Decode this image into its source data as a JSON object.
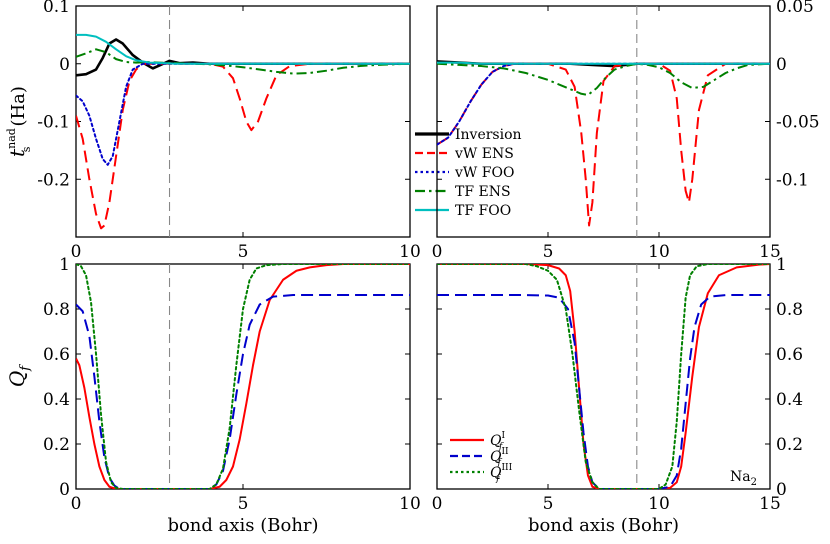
{
  "chart_data": [
    {
      "type": "line",
      "panel": "top-left",
      "xlim": [
        0,
        10
      ],
      "ylim": [
        -0.3,
        0.1
      ],
      "xticks": [
        "0",
        "5",
        "10"
      ],
      "yticks": [
        "0.1",
        "0",
        "-0.1",
        "-0.2"
      ],
      "yaxis_side": "left",
      "ylabel_main": "t",
      "ylabel_sup": "nad",
      "ylabel_sub": "s",
      "ylabel_unit": "(Ha)",
      "vline_x": 2.8,
      "legend": {
        "placement": "bottom-left",
        "entries": [
          {
            "label": "Inversion",
            "color": "#000000",
            "dash": "solid"
          },
          {
            "label": "vW ENS",
            "color": "#ff0000",
            "dash": "dashed"
          },
          {
            "label": "vW FOO",
            "color": "#0000cc",
            "dash": "dotted"
          },
          {
            "label": "TF ENS",
            "color": "#008000",
            "dash": "dashdot"
          },
          {
            "label": "TF FOO",
            "color": "#00bfbf",
            "dash": "solid"
          }
        ]
      },
      "series": [
        {
          "name": "Inversion",
          "color": "#000000",
          "dash": "solid",
          "x": [
            0,
            0.3,
            0.6,
            0.8,
            1.0,
            1.2,
            1.4,
            1.7,
            2.0,
            2.3,
            2.5,
            2.8,
            3.1,
            3.5,
            4,
            5,
            6,
            7,
            8,
            9,
            10
          ],
          "y": [
            -0.02,
            -0.018,
            -0.01,
            0.01,
            0.035,
            0.042,
            0.035,
            0.015,
            0.002,
            -0.008,
            -0.003,
            0.005,
            0.001,
            0.002,
            0,
            0,
            0,
            0,
            0,
            0,
            0
          ]
        },
        {
          "name": "vW ENS",
          "color": "#ff0000",
          "dash": "dashed",
          "x": [
            0,
            0.2,
            0.4,
            0.6,
            0.75,
            0.85,
            1.0,
            1.2,
            1.4,
            1.6,
            1.8,
            2.0,
            2.3,
            2.6,
            3.0,
            3.5,
            4.0,
            4.4,
            4.7,
            4.9,
            5.1,
            5.25,
            5.45,
            5.7,
            6.0,
            6.4,
            7,
            8,
            9,
            10
          ],
          "y": [
            -0.09,
            -0.13,
            -0.2,
            -0.26,
            -0.285,
            -0.28,
            -0.24,
            -0.16,
            -0.08,
            -0.03,
            -0.01,
            0,
            0,
            0,
            0,
            0,
            0,
            -0.005,
            -0.025,
            -0.06,
            -0.1,
            -0.115,
            -0.1,
            -0.06,
            -0.02,
            -0.004,
            0,
            0,
            0,
            0
          ]
        },
        {
          "name": "vW FOO",
          "color": "#0000cc",
          "dash": "dotted",
          "x": [
            0,
            0.2,
            0.4,
            0.6,
            0.8,
            0.95,
            1.1,
            1.3,
            1.5,
            1.7,
            2.0,
            2.5,
            3,
            4,
            5,
            6,
            7,
            8,
            9,
            10
          ],
          "y": [
            -0.055,
            -0.065,
            -0.09,
            -0.13,
            -0.165,
            -0.175,
            -0.16,
            -0.1,
            -0.04,
            -0.01,
            0,
            0,
            0,
            0,
            0,
            0,
            0,
            0,
            0,
            0
          ]
        },
        {
          "name": "TF ENS",
          "color": "#008000",
          "dash": "dashdot",
          "x": [
            0,
            0.3,
            0.6,
            0.9,
            1.2,
            1.5,
            1.8,
            2.1,
            2.5,
            3,
            3.5,
            4,
            4.5,
            5,
            5.5,
            6,
            6.5,
            7,
            7.5,
            8,
            8.5,
            9,
            9.5,
            10
          ],
          "y": [
            0.012,
            0.018,
            0.025,
            0.02,
            0.008,
            0.003,
            0.002,
            0.003,
            0.002,
            0.001,
            0,
            -0.001,
            -0.003,
            -0.006,
            -0.01,
            -0.014,
            -0.017,
            -0.016,
            -0.012,
            -0.007,
            -0.004,
            -0.002,
            -0.001,
            0
          ]
        },
        {
          "name": "TF FOO",
          "color": "#00bfbf",
          "dash": "solid",
          "x": [
            0,
            0.3,
            0.6,
            0.9,
            1.2,
            1.5,
            1.8,
            2.2,
            2.6,
            3,
            4,
            5,
            6,
            7,
            8,
            9,
            10
          ],
          "y": [
            0.05,
            0.05,
            0.047,
            0.038,
            0.025,
            0.013,
            0.006,
            0.002,
            0.001,
            0,
            0,
            0,
            0,
            0,
            0,
            0,
            0
          ]
        }
      ]
    },
    {
      "type": "line",
      "panel": "top-right",
      "xlim": [
        0,
        15
      ],
      "ylim": [
        -0.15,
        0.05
      ],
      "xticks": [
        "0",
        "5",
        "10",
        "15"
      ],
      "yticks": [
        "0.05",
        "0",
        "-0.05",
        "-0.1"
      ],
      "yaxis_side": "right",
      "vline_x": 9,
      "series": [
        {
          "name": "Inversion",
          "color": "#000000",
          "dash": "solid",
          "x": [
            0,
            1,
            2,
            3,
            4,
            5,
            6,
            7,
            8,
            9,
            10,
            11,
            12,
            13,
            14,
            15
          ],
          "y": [
            0.002,
            0.001,
            0,
            0,
            0,
            0,
            0,
            -0.001,
            -0.002,
            0,
            0,
            0,
            0,
            0,
            0,
            0
          ]
        },
        {
          "name": "vW ENS",
          "color": "#ff0000",
          "dash": "dashed",
          "x": [
            0,
            0.5,
            1,
            1.5,
            2,
            2.5,
            3,
            3.5,
            4,
            5,
            5.8,
            6.2,
            6.5,
            6.7,
            6.85,
            7.0,
            7.2,
            7.5,
            8,
            9,
            10,
            10.5,
            10.8,
            11.0,
            11.2,
            11.35,
            11.5,
            11.8,
            12.2,
            13,
            14,
            15
          ],
          "y": [
            -0.07,
            -0.064,
            -0.05,
            -0.033,
            -0.018,
            -0.007,
            -0.002,
            0,
            0,
            0,
            -0.005,
            -0.02,
            -0.06,
            -0.1,
            -0.14,
            -0.12,
            -0.06,
            -0.015,
            -0.002,
            0,
            0,
            -0.006,
            -0.03,
            -0.075,
            -0.11,
            -0.12,
            -0.1,
            -0.04,
            -0.01,
            0,
            0,
            0
          ]
        },
        {
          "name": "vW FOO",
          "color": "#0000cc",
          "dash": "dotted",
          "x": [
            0,
            0.5,
            1,
            1.5,
            2,
            2.5,
            3,
            3.5,
            4,
            5,
            6,
            7,
            8,
            9,
            10,
            11,
            12,
            13,
            14,
            15
          ],
          "y": [
            -0.07,
            -0.064,
            -0.05,
            -0.033,
            -0.018,
            -0.007,
            -0.002,
            0,
            0,
            0,
            0,
            0,
            0,
            0,
            0,
            0,
            0,
            0,
            0,
            0
          ]
        },
        {
          "name": "TF ENS",
          "color": "#008000",
          "dash": "dashdot",
          "x": [
            0,
            1,
            2,
            3,
            4,
            5,
            5.5,
            6,
            6.5,
            6.8,
            7.2,
            7.6,
            8,
            8.5,
            9,
            9.5,
            10,
            10.5,
            11,
            11.5,
            12,
            12.5,
            13,
            13.5,
            14,
            15
          ],
          "y": [
            0,
            -0.001,
            -0.002,
            -0.004,
            -0.008,
            -0.014,
            -0.018,
            -0.022,
            -0.026,
            -0.027,
            -0.021,
            -0.012,
            -0.005,
            -0.002,
            0,
            -0.001,
            -0.003,
            -0.008,
            -0.016,
            -0.021,
            -0.02,
            -0.014,
            -0.008,
            -0.004,
            -0.001,
            0
          ]
        },
        {
          "name": "TF FOO",
          "color": "#00bfbf",
          "dash": "solid",
          "x": [
            0,
            1,
            2,
            3,
            4,
            5,
            6,
            7,
            8,
            9,
            10,
            11,
            12,
            13,
            14,
            15
          ],
          "y": [
            0.001,
            0.001,
            0,
            0,
            0,
            0,
            0,
            0,
            0,
            0,
            0,
            0,
            0,
            0,
            0,
            0
          ]
        }
      ]
    },
    {
      "type": "line",
      "panel": "bottom-left",
      "xlim": [
        0,
        10
      ],
      "ylim": [
        0,
        1
      ],
      "xticks": [
        "0",
        "5",
        "10"
      ],
      "yticks": [
        "0",
        "0.2",
        "0.4",
        "0.6",
        "0.8",
        "1"
      ],
      "yaxis_side": "left",
      "xlabel": "bond axis (Bohr)",
      "ylabel_main": "Q",
      "ylabel_sub": "f",
      "vline_x": 2.8,
      "legend": {
        "placement": "bottom-left",
        "entries": [
          {
            "label": "Q",
            "sup": "I",
            "sub": "f",
            "color": "#ff0000",
            "dash": "solid"
          },
          {
            "label": "Q",
            "sup": "II",
            "sub": "f",
            "color": "#0000cc",
            "dash": "dashed"
          },
          {
            "label": "Q",
            "sup": "III",
            "sub": "f",
            "color": "#008000",
            "dash": "dotted"
          }
        ]
      },
      "series": [
        {
          "name": "Q_f^I",
          "color": "#ff0000",
          "dash": "solid",
          "x": [
            0,
            0.1,
            0.25,
            0.4,
            0.55,
            0.7,
            0.85,
            1.0,
            1.2,
            1.5,
            2,
            3,
            4,
            4.3,
            4.5,
            4.7,
            4.9,
            5.1,
            5.3,
            5.5,
            5.8,
            6.2,
            6.6,
            7.0,
            7.5,
            8,
            9,
            10
          ],
          "y": [
            0.58,
            0.55,
            0.45,
            0.32,
            0.2,
            0.1,
            0.04,
            0.01,
            0,
            0,
            0,
            0,
            0,
            0.01,
            0.04,
            0.1,
            0.22,
            0.38,
            0.55,
            0.7,
            0.84,
            0.93,
            0.97,
            0.985,
            0.995,
            1.0,
            1.0,
            1.0
          ]
        },
        {
          "name": "Q_f^II",
          "color": "#0000cc",
          "dash": "dashed",
          "x": [
            0,
            0.2,
            0.4,
            0.55,
            0.7,
            0.85,
            1.0,
            1.15,
            1.3,
            1.5,
            2,
            3,
            4,
            4.2,
            4.4,
            4.6,
            4.8,
            5.0,
            5.2,
            5.5,
            5.9,
            6.5,
            7,
            8,
            9,
            10
          ],
          "y": [
            0.82,
            0.79,
            0.68,
            0.5,
            0.3,
            0.14,
            0.05,
            0.015,
            0,
            0,
            0,
            0,
            0,
            0.02,
            0.08,
            0.22,
            0.42,
            0.6,
            0.73,
            0.82,
            0.855,
            0.862,
            0.862,
            0.862,
            0.862,
            0.862
          ]
        },
        {
          "name": "Q_f^III",
          "color": "#008000",
          "dash": "dotted",
          "x": [
            0,
            0.15,
            0.3,
            0.45,
            0.6,
            0.75,
            0.9,
            1.05,
            1.2,
            1.4,
            2,
            3,
            4,
            4.2,
            4.4,
            4.6,
            4.8,
            5.0,
            5.2,
            5.4,
            5.7,
            6.2,
            7,
            8,
            9,
            10
          ],
          "y": [
            1.0,
            0.99,
            0.95,
            0.83,
            0.6,
            0.33,
            0.12,
            0.03,
            0.005,
            0,
            0,
            0,
            0,
            0.02,
            0.09,
            0.27,
            0.55,
            0.8,
            0.93,
            0.98,
            0.995,
            1.0,
            1.0,
            1.0,
            1.0,
            1.0
          ]
        }
      ]
    },
    {
      "type": "line",
      "panel": "bottom-right",
      "xlim": [
        0,
        15
      ],
      "ylim": [
        0,
        1
      ],
      "xticks": [
        "0",
        "5",
        "10",
        "15"
      ],
      "yticks": [
        "0",
        "0.2",
        "0.4",
        "0.6",
        "0.8",
        "1"
      ],
      "yaxis_side": "right",
      "xlabel": "bond axis (Bohr)",
      "vline_x": 9,
      "annotation": {
        "text": "Na",
        "sub": "2",
        "placement": "bottom-right"
      },
      "series": [
        {
          "name": "Q_f^I",
          "color": "#ff0000",
          "dash": "solid",
          "x": [
            0,
            1,
            2,
            3,
            4,
            5,
            5.5,
            5.8,
            6.0,
            6.2,
            6.4,
            6.6,
            6.8,
            7.0,
            7.3,
            8,
            9,
            10,
            10.5,
            10.8,
            11.0,
            11.2,
            11.5,
            11.8,
            12.2,
            12.7,
            13.5,
            14.5,
            15
          ],
          "y": [
            1.0,
            1.0,
            1.0,
            1.0,
            1.0,
            0.995,
            0.98,
            0.95,
            0.88,
            0.7,
            0.45,
            0.2,
            0.06,
            0.01,
            0,
            0,
            0,
            0,
            0.005,
            0.03,
            0.1,
            0.25,
            0.5,
            0.72,
            0.87,
            0.95,
            0.985,
            0.997,
            1.0
          ]
        },
        {
          "name": "Q_f^II",
          "color": "#0000cc",
          "dash": "dashed",
          "x": [
            0,
            1,
            2,
            3,
            4,
            5,
            5.5,
            5.9,
            6.2,
            6.4,
            6.6,
            6.8,
            7.0,
            7.3,
            8,
            9,
            10,
            10.5,
            10.8,
            11.0,
            11.2,
            11.4,
            11.6,
            11.9,
            12.3,
            13,
            14,
            15
          ],
          "y": [
            0.862,
            0.862,
            0.862,
            0.862,
            0.862,
            0.86,
            0.85,
            0.8,
            0.65,
            0.45,
            0.25,
            0.1,
            0.03,
            0,
            0,
            0,
            0,
            0.01,
            0.06,
            0.18,
            0.38,
            0.58,
            0.72,
            0.82,
            0.855,
            0.862,
            0.862,
            0.862
          ]
        },
        {
          "name": "Q_f^III",
          "color": "#008000",
          "dash": "dotted",
          "x": [
            0,
            1,
            2,
            3,
            4,
            4.5,
            5.0,
            5.4,
            5.8,
            6.1,
            6.4,
            6.7,
            7.0,
            7.3,
            8,
            9,
            10,
            10.3,
            10.6,
            10.8,
            11.0,
            11.2,
            11.4,
            11.7,
            12.2,
            13,
            14,
            15
          ],
          "y": [
            1.0,
            1.0,
            1.0,
            1.0,
            1.0,
            0.99,
            0.97,
            0.93,
            0.8,
            0.6,
            0.35,
            0.12,
            0.03,
            0,
            0,
            0,
            0,
            0.02,
            0.1,
            0.3,
            0.6,
            0.85,
            0.95,
            0.99,
            1.0,
            1.0,
            1.0,
            1.0
          ]
        }
      ]
    }
  ]
}
